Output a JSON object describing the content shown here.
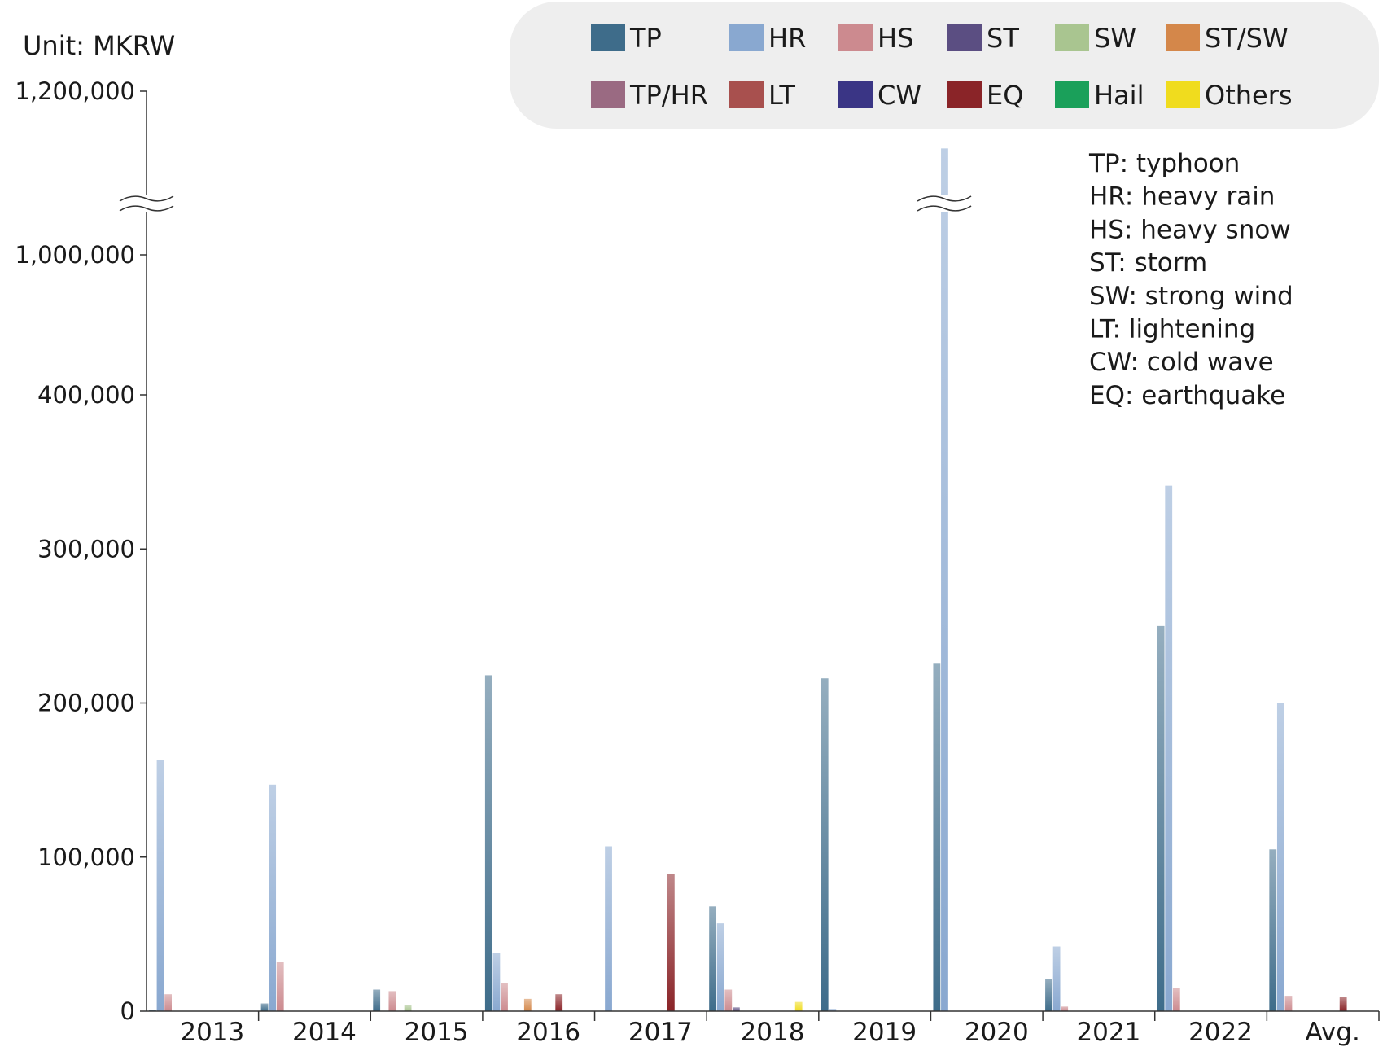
{
  "chart_data": {
    "type": "bar",
    "unit_label": "Unit: MKRW",
    "categories": [
      "2013",
      "2014",
      "2015",
      "2016",
      "2017",
      "2018",
      "2019",
      "2020",
      "2021",
      "2022",
      "Avg."
    ],
    "y_ticks": [
      {
        "value": 0,
        "label": "0"
      },
      {
        "value": 100000,
        "label": "100,000"
      },
      {
        "value": 200000,
        "label": "200,000"
      },
      {
        "value": 300000,
        "label": "300,000"
      },
      {
        "value": 400000,
        "label": "400,000"
      },
      {
        "value": 1000000,
        "label": "1,000,000"
      },
      {
        "value": 1200000,
        "label": "1,200,000"
      }
    ],
    "axis_break": {
      "from": 400000,
      "to": 1000000
    },
    "series": [
      {
        "name": "TP",
        "color": "#3e6c8a",
        "values": [
          1000,
          5000,
          14000,
          218000,
          0,
          68000,
          216000,
          226000,
          21000,
          250000,
          105000
        ]
      },
      {
        "name": "HR",
        "color": "#89a8d0",
        "values": [
          163000,
          147000,
          0,
          38000,
          107000,
          57000,
          1500,
          1130000,
          42000,
          341000,
          200000
        ]
      },
      {
        "name": "HS",
        "color": "#cc8a8f",
        "values": [
          11000,
          32000,
          13000,
          18000,
          0,
          14000,
          0,
          0,
          3000,
          15000,
          10000
        ]
      },
      {
        "name": "ST",
        "color": "#5b4e82",
        "values": [
          0,
          0,
          0,
          0,
          0,
          2500,
          0,
          0,
          0,
          0,
          0
        ]
      },
      {
        "name": "SW",
        "color": "#a9c590",
        "values": [
          0,
          0,
          4000,
          0,
          0,
          0,
          0,
          0,
          0,
          0,
          0
        ]
      },
      {
        "name": "ST/SW",
        "color": "#d4874a",
        "values": [
          0,
          0,
          0,
          8000,
          0,
          0,
          0,
          0,
          0,
          0,
          0
        ]
      },
      {
        "name": "TP/HR",
        "color": "#9a6a82",
        "values": [
          0,
          0,
          0,
          0,
          0,
          0,
          0,
          0,
          0,
          0,
          0
        ]
      },
      {
        "name": "LT",
        "color": "#a8504e",
        "values": [
          0,
          0,
          0,
          0,
          0,
          0,
          0,
          0,
          0,
          0,
          0
        ]
      },
      {
        "name": "CW",
        "color": "#3a3585",
        "values": [
          0,
          0,
          0,
          0,
          0,
          0,
          0,
          0,
          0,
          0,
          0
        ]
      },
      {
        "name": "EQ",
        "color": "#8a2428",
        "values": [
          0,
          0,
          0,
          11000,
          89000,
          0,
          0,
          0,
          0,
          0,
          9000
        ]
      },
      {
        "name": "Hail",
        "color": "#1aa05a",
        "values": [
          0,
          0,
          0,
          0,
          0,
          0,
          0,
          0,
          0,
          0,
          0
        ]
      },
      {
        "name": "Others",
        "color": "#f0dc1e",
        "values": [
          0,
          0,
          0,
          0,
          0,
          6000,
          0,
          0,
          0,
          0,
          0
        ]
      }
    ],
    "abbreviations": [
      "TP: typhoon",
      "HR: heavy rain",
      "HS: heavy snow",
      "ST: storm",
      "SW: strong wind",
      "LT: lightening",
      "CW: cold wave",
      "EQ: earthquake"
    ]
  }
}
